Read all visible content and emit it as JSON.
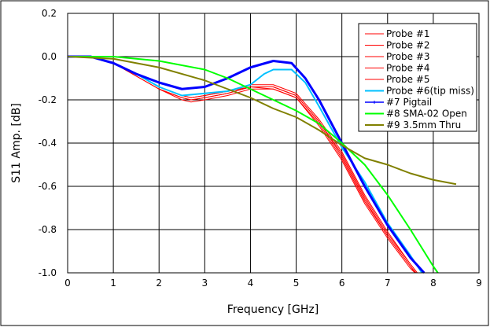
{
  "chart_data": {
    "type": "line",
    "title": "",
    "xlabel": "Frequency [GHz]",
    "ylabel": "S11 Amp. [dB]",
    "xlim": [
      0,
      9
    ],
    "ylim": [
      -1.0,
      0.2
    ],
    "xticks": [
      "0",
      "1",
      "2",
      "3",
      "4",
      "5",
      "6",
      "7",
      "8",
      "9"
    ],
    "yticks": [
      "0.2",
      "0.0",
      "-0.2",
      "-0.4",
      "-0.6",
      "-0.8",
      "-1.0"
    ],
    "grid": true,
    "legend_position": "top-right",
    "series": [
      {
        "name": "Probe #1",
        "color": "#ff0000",
        "width": 1,
        "points": [
          [
            0,
            0
          ],
          [
            0.5,
            0
          ],
          [
            1,
            -0.03
          ],
          [
            1.5,
            -0.09
          ],
          [
            2,
            -0.15
          ],
          [
            2.5,
            -0.19
          ],
          [
            2.7,
            -0.2
          ],
          [
            3,
            -0.19
          ],
          [
            3.5,
            -0.17
          ],
          [
            4,
            -0.14
          ],
          [
            4.5,
            -0.14
          ],
          [
            5,
            -0.18
          ],
          [
            5.5,
            -0.3
          ],
          [
            6,
            -0.46
          ],
          [
            6.5,
            -0.66
          ],
          [
            7,
            -0.83
          ],
          [
            7.5,
            -0.97
          ],
          [
            7.6,
            -1.0
          ]
        ]
      },
      {
        "name": "Probe #2",
        "color": "#ff0000",
        "width": 1,
        "points": [
          [
            0,
            0
          ],
          [
            0.5,
            0
          ],
          [
            1,
            -0.03
          ],
          [
            1.5,
            -0.08
          ],
          [
            2,
            -0.14
          ],
          [
            2.5,
            -0.18
          ],
          [
            2.7,
            -0.19
          ],
          [
            3,
            -0.18
          ],
          [
            3.5,
            -0.16
          ],
          [
            4,
            -0.13
          ],
          [
            4.5,
            -0.13
          ],
          [
            5,
            -0.17
          ],
          [
            5.5,
            -0.29
          ],
          [
            6,
            -0.44
          ],
          [
            6.5,
            -0.64
          ],
          [
            7,
            -0.81
          ],
          [
            7.5,
            -0.96
          ],
          [
            7.65,
            -1.0
          ]
        ]
      },
      {
        "name": "Probe #3",
        "color": "#ff0000",
        "width": 1,
        "points": [
          [
            0,
            0
          ],
          [
            0.5,
            0
          ],
          [
            1,
            -0.03
          ],
          [
            1.5,
            -0.09
          ],
          [
            2,
            -0.15
          ],
          [
            2.5,
            -0.2
          ],
          [
            2.7,
            -0.21
          ],
          [
            3,
            -0.2
          ],
          [
            3.5,
            -0.18
          ],
          [
            4,
            -0.15
          ],
          [
            4.5,
            -0.15
          ],
          [
            5,
            -0.19
          ],
          [
            5.5,
            -0.32
          ],
          [
            6,
            -0.48
          ],
          [
            6.5,
            -0.68
          ],
          [
            7,
            -0.84
          ],
          [
            7.5,
            -0.98
          ],
          [
            7.6,
            -1.0
          ]
        ]
      },
      {
        "name": "Probe #4",
        "color": "#ff0000",
        "width": 1,
        "points": [
          [
            0,
            0
          ],
          [
            0.5,
            0
          ],
          [
            1,
            -0.03
          ],
          [
            1.5,
            -0.08
          ],
          [
            2,
            -0.14
          ],
          [
            2.5,
            -0.18
          ],
          [
            2.7,
            -0.19
          ],
          [
            3,
            -0.18
          ],
          [
            3.5,
            -0.16
          ],
          [
            4,
            -0.14
          ],
          [
            4.5,
            -0.14
          ],
          [
            5,
            -0.18
          ],
          [
            5.5,
            -0.3
          ],
          [
            6,
            -0.45
          ],
          [
            6.5,
            -0.65
          ],
          [
            7,
            -0.82
          ],
          [
            7.5,
            -0.96
          ],
          [
            7.65,
            -1.0
          ]
        ]
      },
      {
        "name": "Probe #5",
        "color": "#ff0000",
        "width": 1,
        "points": [
          [
            0,
            0
          ],
          [
            0.5,
            0
          ],
          [
            1,
            -0.03
          ],
          [
            1.5,
            -0.09
          ],
          [
            2,
            -0.15
          ],
          [
            2.5,
            -0.19
          ],
          [
            2.7,
            -0.2
          ],
          [
            3,
            -0.19
          ],
          [
            3.5,
            -0.17
          ],
          [
            4,
            -0.14
          ],
          [
            4.5,
            -0.15
          ],
          [
            5,
            -0.19
          ],
          [
            5.5,
            -0.31
          ],
          [
            6,
            -0.47
          ],
          [
            6.5,
            -0.67
          ],
          [
            7,
            -0.83
          ],
          [
            7.5,
            -0.97
          ],
          [
            7.62,
            -1.0
          ]
        ]
      },
      {
        "name": "Probe #6(tip miss)",
        "color": "#00c0ff",
        "width": 2,
        "points": [
          [
            0,
            0
          ],
          [
            0.5,
            0
          ],
          [
            1,
            -0.03
          ],
          [
            1.5,
            -0.08
          ],
          [
            2,
            -0.14
          ],
          [
            2.5,
            -0.18
          ],
          [
            3,
            -0.17
          ],
          [
            3.5,
            -0.16
          ],
          [
            4,
            -0.13
          ],
          [
            4.3,
            -0.08
          ],
          [
            4.5,
            -0.06
          ],
          [
            4.9,
            -0.06
          ],
          [
            5.2,
            -0.12
          ],
          [
            5.5,
            -0.23
          ],
          [
            6,
            -0.42
          ],
          [
            6.5,
            -0.58
          ],
          [
            7,
            -0.77
          ],
          [
            7.5,
            -0.92
          ],
          [
            7.75,
            -1.0
          ]
        ]
      },
      {
        "name": "#7 Pigtail",
        "color": "#0000ff",
        "width": 3,
        "points": [
          [
            0,
            0
          ],
          [
            0.5,
            0
          ],
          [
            1,
            -0.03
          ],
          [
            1.5,
            -0.08
          ],
          [
            2,
            -0.12
          ],
          [
            2.5,
            -0.15
          ],
          [
            3,
            -0.14
          ],
          [
            3.5,
            -0.1
          ],
          [
            4,
            -0.05
          ],
          [
            4.5,
            -0.02
          ],
          [
            4.9,
            -0.03
          ],
          [
            5.2,
            -0.1
          ],
          [
            5.5,
            -0.2
          ],
          [
            6,
            -0.4
          ],
          [
            6.5,
            -0.6
          ],
          [
            7,
            -0.78
          ],
          [
            7.5,
            -0.93
          ],
          [
            7.8,
            -1.0
          ]
        ]
      },
      {
        "name": "#8 SMA-02 Open",
        "color": "#00ff00",
        "width": 2,
        "points": [
          [
            0,
            0
          ],
          [
            1,
            0
          ],
          [
            2,
            -0.02
          ],
          [
            3,
            -0.06
          ],
          [
            3.5,
            -0.1
          ],
          [
            4,
            -0.15
          ],
          [
            4.5,
            -0.2
          ],
          [
            5,
            -0.25
          ],
          [
            5.5,
            -0.31
          ],
          [
            6,
            -0.4
          ],
          [
            6.5,
            -0.5
          ],
          [
            7,
            -0.64
          ],
          [
            7.5,
            -0.8
          ],
          [
            8,
            -0.97
          ],
          [
            8.1,
            -1.0
          ]
        ]
      },
      {
        "name": "#9 3.5mm Thru",
        "color": "#808000",
        "width": 2,
        "points": [
          [
            0,
            0
          ],
          [
            1,
            -0.01
          ],
          [
            2,
            -0.05
          ],
          [
            3,
            -0.11
          ],
          [
            4,
            -0.19
          ],
          [
            4.5,
            -0.24
          ],
          [
            5,
            -0.28
          ],
          [
            5.5,
            -0.34
          ],
          [
            6,
            -0.41
          ],
          [
            6.5,
            -0.47
          ],
          [
            7,
            -0.5
          ],
          [
            7.5,
            -0.54
          ],
          [
            8,
            -0.57
          ],
          [
            8.5,
            -0.59
          ]
        ]
      }
    ]
  }
}
